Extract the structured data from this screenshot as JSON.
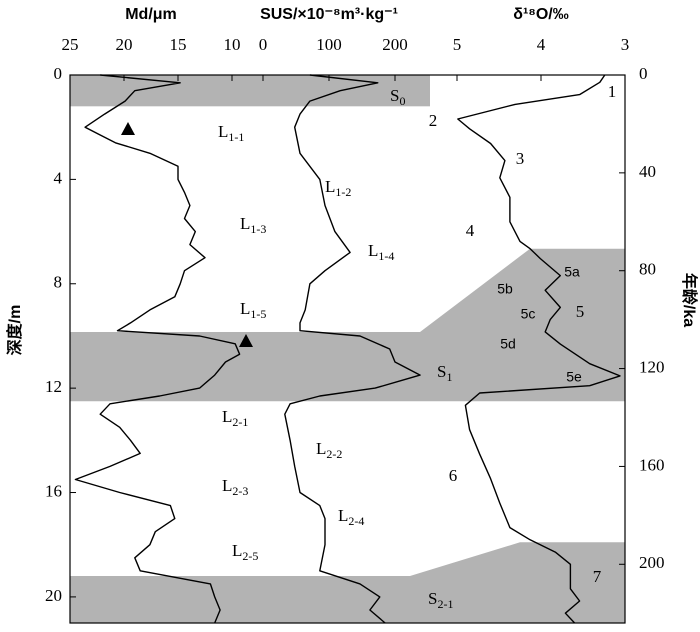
{
  "chart_data": {
    "type": "profile",
    "y_label": "深度/m",
    "ylim": [
      0,
      21
    ],
    "yticks": [
      0,
      4,
      8,
      12,
      16,
      20
    ],
    "y2_label": "年龄/ka",
    "y2lim": [
      0,
      224
    ],
    "y2ticks": [
      0,
      40,
      80,
      120,
      160,
      200
    ],
    "panels": [
      {
        "xlabel": "Md/μm",
        "xlim": [
          25,
          10
        ],
        "xticks": [
          25,
          20,
          15,
          10
        ],
        "axis": "y",
        "color": "#000000",
        "y": [
          0,
          0.3,
          0.6,
          1,
          1.5,
          2,
          2.3,
          2.6,
          3,
          3.5,
          4,
          4.5,
          5,
          5.5,
          6,
          6.5,
          7,
          7.5,
          8,
          8.5,
          9,
          9.5,
          9.8,
          10,
          10.3,
          10.7,
          11,
          11.5,
          12,
          12.3,
          12.6,
          13,
          13.5,
          14,
          14.5,
          15,
          15.5,
          16,
          16.5,
          17,
          17.5,
          18,
          18.5,
          19,
          19.5,
          20,
          20.5,
          21
        ],
        "values": [
          22.2,
          14.8,
          19,
          19.9,
          21.8,
          23.6,
          22.2,
          20.8,
          17.6,
          15,
          15,
          14.4,
          13.9,
          14.4,
          13.4,
          13.9,
          12.5,
          14.4,
          14.8,
          15.3,
          17.6,
          19.4,
          20.6,
          13,
          9.7,
          9.3,
          10.6,
          11.6,
          13,
          16.7,
          21.3,
          22.2,
          20.4,
          19.4,
          18.5,
          21.3,
          24.5,
          20.4,
          15.7,
          15.3,
          17.1,
          17.6,
          19,
          18.5,
          12,
          11.6,
          11.1,
          11.6
        ]
      },
      {
        "xlabel": "SUS/×10⁻⁸m³·kg⁻¹",
        "xlim": [
          0,
          200
        ],
        "xticks": [
          0,
          100,
          200
        ],
        "axis": "y",
        "color": "#000000",
        "y": [
          0,
          0.3,
          0.6,
          1,
          1.5,
          2,
          3,
          4,
          5,
          6,
          6.8,
          7.5,
          8,
          9,
          9.5,
          9.8,
          10,
          10.5,
          11,
          11.5,
          12,
          12.3,
          12.6,
          13,
          14,
          15,
          16,
          16.5,
          17,
          18,
          19,
          19.5,
          20,
          20.5,
          21
        ],
        "values": [
          71,
          174,
          117,
          71,
          56,
          48,
          56,
          86,
          94,
          109,
          132,
          94,
          71,
          64,
          56,
          56,
          147,
          192,
          200,
          238,
          170,
          86,
          41,
          33,
          41,
          48,
          56,
          86,
          94,
          94,
          86,
          147,
          177,
          162,
          185
        ]
      },
      {
        "xlabel": "δ¹⁸O/‰",
        "xlim": [
          5,
          3
        ],
        "xticks": [
          5,
          4,
          3
        ],
        "axis": "y2",
        "color": "#000000",
        "y": [
          0,
          3,
          8,
          12,
          18,
          22,
          28,
          35,
          42,
          50,
          60,
          68,
          71,
          75,
          82,
          88,
          95,
          100,
          105,
          110,
          118,
          123,
          127,
          130,
          135,
          145,
          155,
          165,
          175,
          185,
          190,
          195,
          200,
          210,
          215,
          220,
          224
        ],
        "values": [
          3.24,
          3.3,
          3.54,
          4.31,
          4.99,
          4.85,
          4.6,
          4.43,
          4.49,
          4.37,
          4.37,
          4.25,
          4.13,
          4.01,
          3.77,
          3.95,
          3.77,
          3.89,
          3.95,
          3.77,
          3.42,
          3.06,
          3.42,
          4.73,
          4.9,
          4.85,
          4.73,
          4.6,
          4.49,
          4.37,
          4.13,
          3.83,
          3.65,
          3.65,
          3.54,
          3.71,
          3.6
        ]
      }
    ],
    "soil_bands": [
      [
        0,
        1.2
      ],
      [
        9.85,
        12.5
      ],
      [
        19.2,
        21
      ]
    ],
    "stage_bands": [
      [
        71,
        130
      ],
      [
        191,
        224
      ]
    ],
    "units": [
      {
        "main": "S",
        "sub": "0"
      },
      {
        "main": "L",
        "sub": "1-1"
      },
      {
        "main": "L",
        "sub": "1-2"
      },
      {
        "main": "L",
        "sub": "1-3"
      },
      {
        "main": "L",
        "sub": "1-4"
      },
      {
        "main": "L",
        "sub": "1-5"
      },
      {
        "main": "S",
        "sub": "1"
      },
      {
        "main": "L",
        "sub": "2-1"
      },
      {
        "main": "L",
        "sub": "2-2"
      },
      {
        "main": "L",
        "sub": "2-3"
      },
      {
        "main": "L",
        "sub": "2-4"
      },
      {
        "main": "L",
        "sub": "2-5"
      },
      {
        "main": "S",
        "sub": "2-1"
      }
    ],
    "stages": [
      "1",
      "2",
      "3",
      "4",
      "5",
      "5a",
      "5b",
      "5c",
      "5d",
      "5e",
      "6",
      "7"
    ]
  }
}
